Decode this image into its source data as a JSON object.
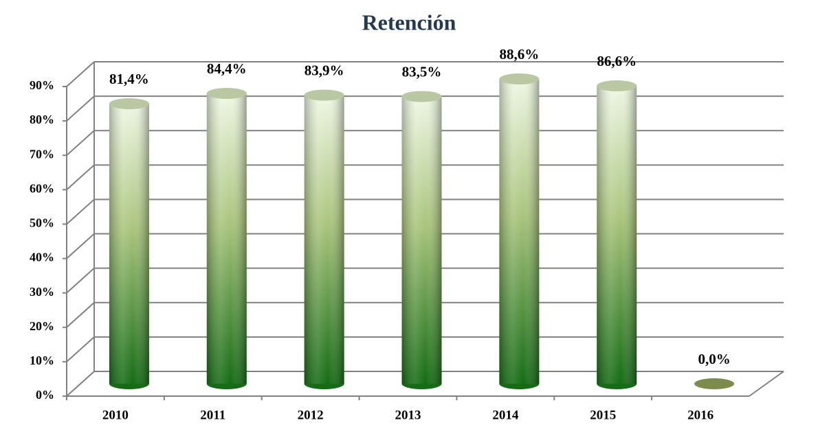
{
  "chart_data": {
    "type": "bar",
    "title": "Retención",
    "categories": [
      "2010",
      "2011",
      "2012",
      "2013",
      "2014",
      "2015",
      "2016"
    ],
    "values": [
      81.4,
      84.4,
      83.9,
      83.5,
      88.6,
      86.6,
      0.0
    ],
    "value_labels": [
      "81,4%",
      "84,4%",
      "83,9%",
      "83,5%",
      "88,6%",
      "86,6%",
      "0,0%"
    ],
    "ylim": [
      0,
      90
    ],
    "yticks": [
      {
        "value": 0,
        "label": "0%"
      },
      {
        "value": 10,
        "label": "10%"
      },
      {
        "value": 20,
        "label": "20%"
      },
      {
        "value": 30,
        "label": "30%"
      },
      {
        "value": 40,
        "label": "40%"
      },
      {
        "value": 50,
        "label": "50%"
      },
      {
        "value": 60,
        "label": "60%"
      },
      {
        "value": 70,
        "label": "70%"
      },
      {
        "value": 80,
        "label": "80%"
      },
      {
        "value": 90,
        "label": "90%"
      }
    ],
    "grid": true
  }
}
